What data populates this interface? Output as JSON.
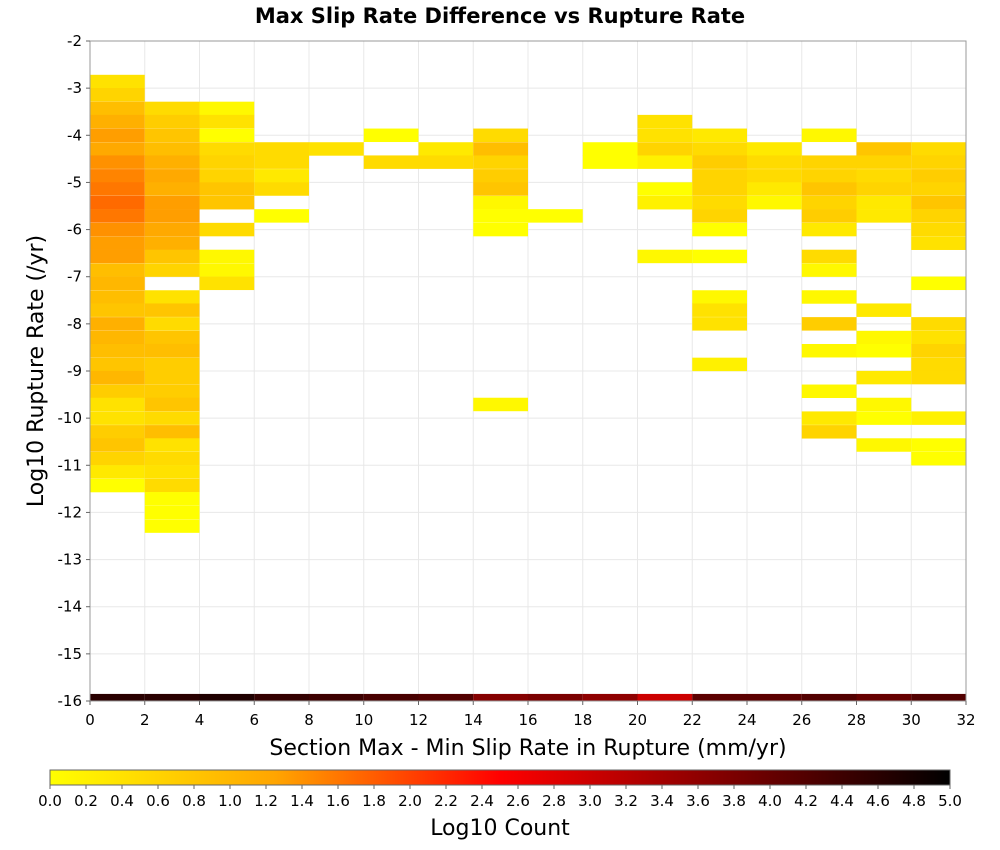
{
  "chart_data": {
    "type": "heatmap",
    "title": "Max Slip Rate Difference vs Rupture Rate",
    "xlabel": "Section Max - Min Slip Rate in Rupture (mm/yr)",
    "ylabel": "Log10 Rupture Rate (/yr)",
    "xlim": [
      0,
      32
    ],
    "ylim": [
      -16,
      -2
    ],
    "x_ticks": [
      "0",
      "2",
      "4",
      "6",
      "8",
      "10",
      "12",
      "14",
      "16",
      "18",
      "20",
      "22",
      "24",
      "26",
      "28",
      "30",
      "32"
    ],
    "y_ticks": [
      "-2",
      "-3",
      "-4",
      "-5",
      "-6",
      "-7",
      "-8",
      "-9",
      "-10",
      "-11",
      "-12",
      "-13",
      "-14",
      "-15",
      "-16"
    ],
    "grid": true,
    "bin_size": {
      "x": 2,
      "y": 0.2857
    },
    "colorbar": {
      "title": "Log10 Count",
      "range": [
        0,
        5
      ],
      "ticks": [
        "0.0",
        "0.2",
        "0.4",
        "0.6",
        "0.8",
        "1.0",
        "1.2",
        "1.4",
        "1.6",
        "1.8",
        "2.0",
        "2.2",
        "2.4",
        "2.6",
        "2.8",
        "3.0",
        "3.2",
        "3.4",
        "3.6",
        "3.8",
        "4.0",
        "4.2",
        "4.4",
        "4.6",
        "4.8",
        "5.0"
      ],
      "stops": [
        "#ffff00",
        "#ffa500",
        "#ff0000",
        "#800000",
        "#000000"
      ]
    },
    "cells": [
      {
        "x": 1,
        "y": -2.86,
        "v": 0.4
      },
      {
        "x": 1,
        "y": -3.14,
        "v": 0.6
      },
      {
        "x": 1,
        "y": -3.43,
        "v": 0.9
      },
      {
        "x": 1,
        "y": -3.71,
        "v": 1.1
      },
      {
        "x": 1,
        "y": -4.0,
        "v": 1.3
      },
      {
        "x": 1,
        "y": -4.29,
        "v": 1.2
      },
      {
        "x": 1,
        "y": -4.57,
        "v": 1.4
      },
      {
        "x": 1,
        "y": -4.86,
        "v": 1.5
      },
      {
        "x": 1,
        "y": -5.14,
        "v": 1.6
      },
      {
        "x": 1,
        "y": -5.43,
        "v": 1.7
      },
      {
        "x": 1,
        "y": -5.71,
        "v": 1.6
      },
      {
        "x": 1,
        "y": -6.0,
        "v": 1.4
      },
      {
        "x": 1,
        "y": -6.29,
        "v": 1.3
      },
      {
        "x": 1,
        "y": -6.57,
        "v": 1.3
      },
      {
        "x": 1,
        "y": -6.86,
        "v": 0.9
      },
      {
        "x": 1,
        "y": -7.14,
        "v": 1.0
      },
      {
        "x": 1,
        "y": -7.43,
        "v": 0.9
      },
      {
        "x": 1,
        "y": -7.71,
        "v": 0.8
      },
      {
        "x": 1,
        "y": -8.0,
        "v": 1.1
      },
      {
        "x": 1,
        "y": -8.29,
        "v": 1.0
      },
      {
        "x": 1,
        "y": -8.57,
        "v": 0.9
      },
      {
        "x": 1,
        "y": -8.86,
        "v": 0.8
      },
      {
        "x": 1,
        "y": -9.14,
        "v": 1.0
      },
      {
        "x": 1,
        "y": -9.43,
        "v": 0.7
      },
      {
        "x": 1,
        "y": -9.71,
        "v": 0.4
      },
      {
        "x": 1,
        "y": -10.0,
        "v": 0.4
      },
      {
        "x": 1,
        "y": -10.29,
        "v": 0.7
      },
      {
        "x": 1,
        "y": -10.57,
        "v": 0.8
      },
      {
        "x": 1,
        "y": -10.86,
        "v": 0.6
      },
      {
        "x": 1,
        "y": -11.14,
        "v": 0.3
      },
      {
        "x": 1,
        "y": -11.43,
        "v": 0.0
      },
      {
        "x": 3,
        "y": -3.43,
        "v": 0.5
      },
      {
        "x": 3,
        "y": -3.71,
        "v": 0.7
      },
      {
        "x": 3,
        "y": -4.0,
        "v": 0.8
      },
      {
        "x": 3,
        "y": -4.29,
        "v": 0.9
      },
      {
        "x": 3,
        "y": -4.57,
        "v": 1.1
      },
      {
        "x": 3,
        "y": -4.86,
        "v": 1.2
      },
      {
        "x": 3,
        "y": -5.14,
        "v": 1.1
      },
      {
        "x": 3,
        "y": -5.43,
        "v": 1.3
      },
      {
        "x": 3,
        "y": -5.71,
        "v": 1.3
      },
      {
        "x": 3,
        "y": -6.0,
        "v": 1.2
      },
      {
        "x": 3,
        "y": -6.29,
        "v": 1.1
      },
      {
        "x": 3,
        "y": -6.57,
        "v": 0.8
      },
      {
        "x": 3,
        "y": -6.86,
        "v": 0.6
      },
      {
        "x": 3,
        "y": -7.43,
        "v": 0.4
      },
      {
        "x": 3,
        "y": -7.71,
        "v": 0.8
      },
      {
        "x": 3,
        "y": -8.0,
        "v": 0.5
      },
      {
        "x": 3,
        "y": -8.29,
        "v": 0.8
      },
      {
        "x": 3,
        "y": -8.57,
        "v": 0.9
      },
      {
        "x": 3,
        "y": -8.86,
        "v": 0.7
      },
      {
        "x": 3,
        "y": -9.14,
        "v": 0.7
      },
      {
        "x": 3,
        "y": -9.43,
        "v": 0.7
      },
      {
        "x": 3,
        "y": -9.71,
        "v": 0.8
      },
      {
        "x": 3,
        "y": -10.0,
        "v": 0.5
      },
      {
        "x": 3,
        "y": -10.29,
        "v": 0.9
      },
      {
        "x": 3,
        "y": -10.57,
        "v": 0.4
      },
      {
        "x": 3,
        "y": -10.86,
        "v": 0.5
      },
      {
        "x": 3,
        "y": -11.14,
        "v": 0.4
      },
      {
        "x": 3,
        "y": -11.43,
        "v": 0.5
      },
      {
        "x": 3,
        "y": -11.71,
        "v": 0.0
      },
      {
        "x": 3,
        "y": -12.0,
        "v": 0.0
      },
      {
        "x": 3,
        "y": -12.29,
        "v": 0.0
      },
      {
        "x": 5,
        "y": -3.43,
        "v": 0.1
      },
      {
        "x": 5,
        "y": -3.71,
        "v": 0.4
      },
      {
        "x": 5,
        "y": -4.0,
        "v": 0.0
      },
      {
        "x": 5,
        "y": -4.29,
        "v": 0.5
      },
      {
        "x": 5,
        "y": -4.57,
        "v": 0.6
      },
      {
        "x": 5,
        "y": -4.86,
        "v": 0.6
      },
      {
        "x": 5,
        "y": -5.14,
        "v": 0.8
      },
      {
        "x": 5,
        "y": -5.43,
        "v": 0.8
      },
      {
        "x": 5,
        "y": -6.0,
        "v": 0.5
      },
      {
        "x": 5,
        "y": -6.57,
        "v": 0.1
      },
      {
        "x": 5,
        "y": -6.86,
        "v": 0.1
      },
      {
        "x": 5,
        "y": -7.14,
        "v": 0.4
      },
      {
        "x": 7,
        "y": -4.29,
        "v": 0.5
      },
      {
        "x": 7,
        "y": -4.57,
        "v": 0.5
      },
      {
        "x": 7,
        "y": -4.86,
        "v": 0.3
      },
      {
        "x": 7,
        "y": -5.14,
        "v": 0.5
      },
      {
        "x": 7,
        "y": -5.71,
        "v": 0.0
      },
      {
        "x": 9,
        "y": -4.29,
        "v": 0.4
      },
      {
        "x": 11,
        "y": -4.0,
        "v": 0.0
      },
      {
        "x": 11,
        "y": -4.57,
        "v": 0.5
      },
      {
        "x": 13,
        "y": -4.29,
        "v": 0.3
      },
      {
        "x": 13,
        "y": -4.57,
        "v": 0.5
      },
      {
        "x": 15,
        "y": -4.0,
        "v": 0.5
      },
      {
        "x": 15,
        "y": -4.29,
        "v": 0.9
      },
      {
        "x": 15,
        "y": -4.57,
        "v": 0.6
      },
      {
        "x": 15,
        "y": -4.86,
        "v": 0.7
      },
      {
        "x": 15,
        "y": -5.14,
        "v": 0.8
      },
      {
        "x": 15,
        "y": -5.43,
        "v": 0.1
      },
      {
        "x": 15,
        "y": -5.71,
        "v": 0.0
      },
      {
        "x": 15,
        "y": -6.0,
        "v": 0.0
      },
      {
        "x": 15,
        "y": -9.71,
        "v": 0.1
      },
      {
        "x": 17,
        "y": -5.71,
        "v": 0.0
      },
      {
        "x": 19,
        "y": -4.29,
        "v": 0.0
      },
      {
        "x": 19,
        "y": -4.57,
        "v": 0.0
      },
      {
        "x": 21,
        "y": -3.71,
        "v": 0.4
      },
      {
        "x": 21,
        "y": -4.0,
        "v": 0.4
      },
      {
        "x": 21,
        "y": -4.29,
        "v": 0.6
      },
      {
        "x": 21,
        "y": -4.57,
        "v": 0.2
      },
      {
        "x": 21,
        "y": -5.14,
        "v": 0.0
      },
      {
        "x": 21,
        "y": -5.43,
        "v": 0.2
      },
      {
        "x": 21,
        "y": -6.57,
        "v": 0.1
      },
      {
        "x": 23,
        "y": -4.0,
        "v": 0.3
      },
      {
        "x": 23,
        "y": -4.29,
        "v": 0.5
      },
      {
        "x": 23,
        "y": -4.57,
        "v": 0.7
      },
      {
        "x": 23,
        "y": -4.86,
        "v": 0.6
      },
      {
        "x": 23,
        "y": -5.14,
        "v": 0.6
      },
      {
        "x": 23,
        "y": -5.43,
        "v": 0.5
      },
      {
        "x": 23,
        "y": -5.71,
        "v": 0.6
      },
      {
        "x": 23,
        "y": -6.0,
        "v": 0.0
      },
      {
        "x": 23,
        "y": -6.57,
        "v": 0.0
      },
      {
        "x": 23,
        "y": -7.43,
        "v": 0.1
      },
      {
        "x": 23,
        "y": -7.71,
        "v": 0.4
      },
      {
        "x": 23,
        "y": -8.0,
        "v": 0.4
      },
      {
        "x": 23,
        "y": -8.86,
        "v": 0.2
      },
      {
        "x": 25,
        "y": -4.29,
        "v": 0.3
      },
      {
        "x": 25,
        "y": -4.57,
        "v": 0.5
      },
      {
        "x": 25,
        "y": -4.86,
        "v": 0.5
      },
      {
        "x": 25,
        "y": -5.14,
        "v": 0.3
      },
      {
        "x": 25,
        "y": -5.43,
        "v": 0.1
      },
      {
        "x": 27,
        "y": -4.0,
        "v": 0.1
      },
      {
        "x": 27,
        "y": -4.57,
        "v": 0.6
      },
      {
        "x": 27,
        "y": -4.86,
        "v": 0.6
      },
      {
        "x": 27,
        "y": -5.14,
        "v": 0.8
      },
      {
        "x": 27,
        "y": -5.43,
        "v": 0.6
      },
      {
        "x": 27,
        "y": -5.71,
        "v": 0.7
      },
      {
        "x": 27,
        "y": -6.0,
        "v": 0.3
      },
      {
        "x": 27,
        "y": -6.57,
        "v": 0.5
      },
      {
        "x": 27,
        "y": -6.86,
        "v": 0.1
      },
      {
        "x": 27,
        "y": -7.43,
        "v": 0.1
      },
      {
        "x": 27,
        "y": -8.0,
        "v": 0.7
      },
      {
        "x": 27,
        "y": -8.57,
        "v": 0.1
      },
      {
        "x": 27,
        "y": -9.43,
        "v": 0.1
      },
      {
        "x": 27,
        "y": -10.0,
        "v": 0.3
      },
      {
        "x": 27,
        "y": -10.29,
        "v": 0.6
      },
      {
        "x": 29,
        "y": -4.29,
        "v": 0.8
      },
      {
        "x": 29,
        "y": -4.57,
        "v": 0.6
      },
      {
        "x": 29,
        "y": -4.86,
        "v": 0.5
      },
      {
        "x": 29,
        "y": -5.14,
        "v": 0.6
      },
      {
        "x": 29,
        "y": -5.43,
        "v": 0.3
      },
      {
        "x": 29,
        "y": -5.71,
        "v": 0.3
      },
      {
        "x": 29,
        "y": -7.71,
        "v": 0.3
      },
      {
        "x": 29,
        "y": -8.29,
        "v": 0.1
      },
      {
        "x": 29,
        "y": -8.57,
        "v": 0.0
      },
      {
        "x": 29,
        "y": -9.14,
        "v": 0.3
      },
      {
        "x": 29,
        "y": -9.71,
        "v": 0.1
      },
      {
        "x": 29,
        "y": -10.0,
        "v": 0.0
      },
      {
        "x": 29,
        "y": -10.57,
        "v": 0.1
      },
      {
        "x": 31,
        "y": -4.29,
        "v": 0.5
      },
      {
        "x": 31,
        "y": -4.57,
        "v": 0.6
      },
      {
        "x": 31,
        "y": -4.86,
        "v": 0.7
      },
      {
        "x": 31,
        "y": -5.14,
        "v": 0.6
      },
      {
        "x": 31,
        "y": -5.43,
        "v": 0.8
      },
      {
        "x": 31,
        "y": -5.71,
        "v": 0.6
      },
      {
        "x": 31,
        "y": -6.0,
        "v": 0.5
      },
      {
        "x": 31,
        "y": -6.29,
        "v": 0.4
      },
      {
        "x": 31,
        "y": -7.14,
        "v": 0.0
      },
      {
        "x": 31,
        "y": -8.0,
        "v": 0.5
      },
      {
        "x": 31,
        "y": -8.29,
        "v": 0.4
      },
      {
        "x": 31,
        "y": -8.57,
        "v": 0.6
      },
      {
        "x": 31,
        "y": -8.86,
        "v": 0.5
      },
      {
        "x": 31,
        "y": -9.14,
        "v": 0.5
      },
      {
        "x": 31,
        "y": -10.0,
        "v": 0.2
      },
      {
        "x": 31,
        "y": -10.57,
        "v": 0.0
      },
      {
        "x": 31,
        "y": -10.86,
        "v": 0.0
      }
    ],
    "bottom_row": {
      "y": -16,
      "values": [
        4.6,
        4.6,
        4.7,
        4.5,
        4.4,
        4.3,
        4.2,
        3.7,
        3.8,
        3.6,
        3.0,
        4.1,
        4.1,
        4.2,
        4.0,
        4.2
      ]
    }
  }
}
